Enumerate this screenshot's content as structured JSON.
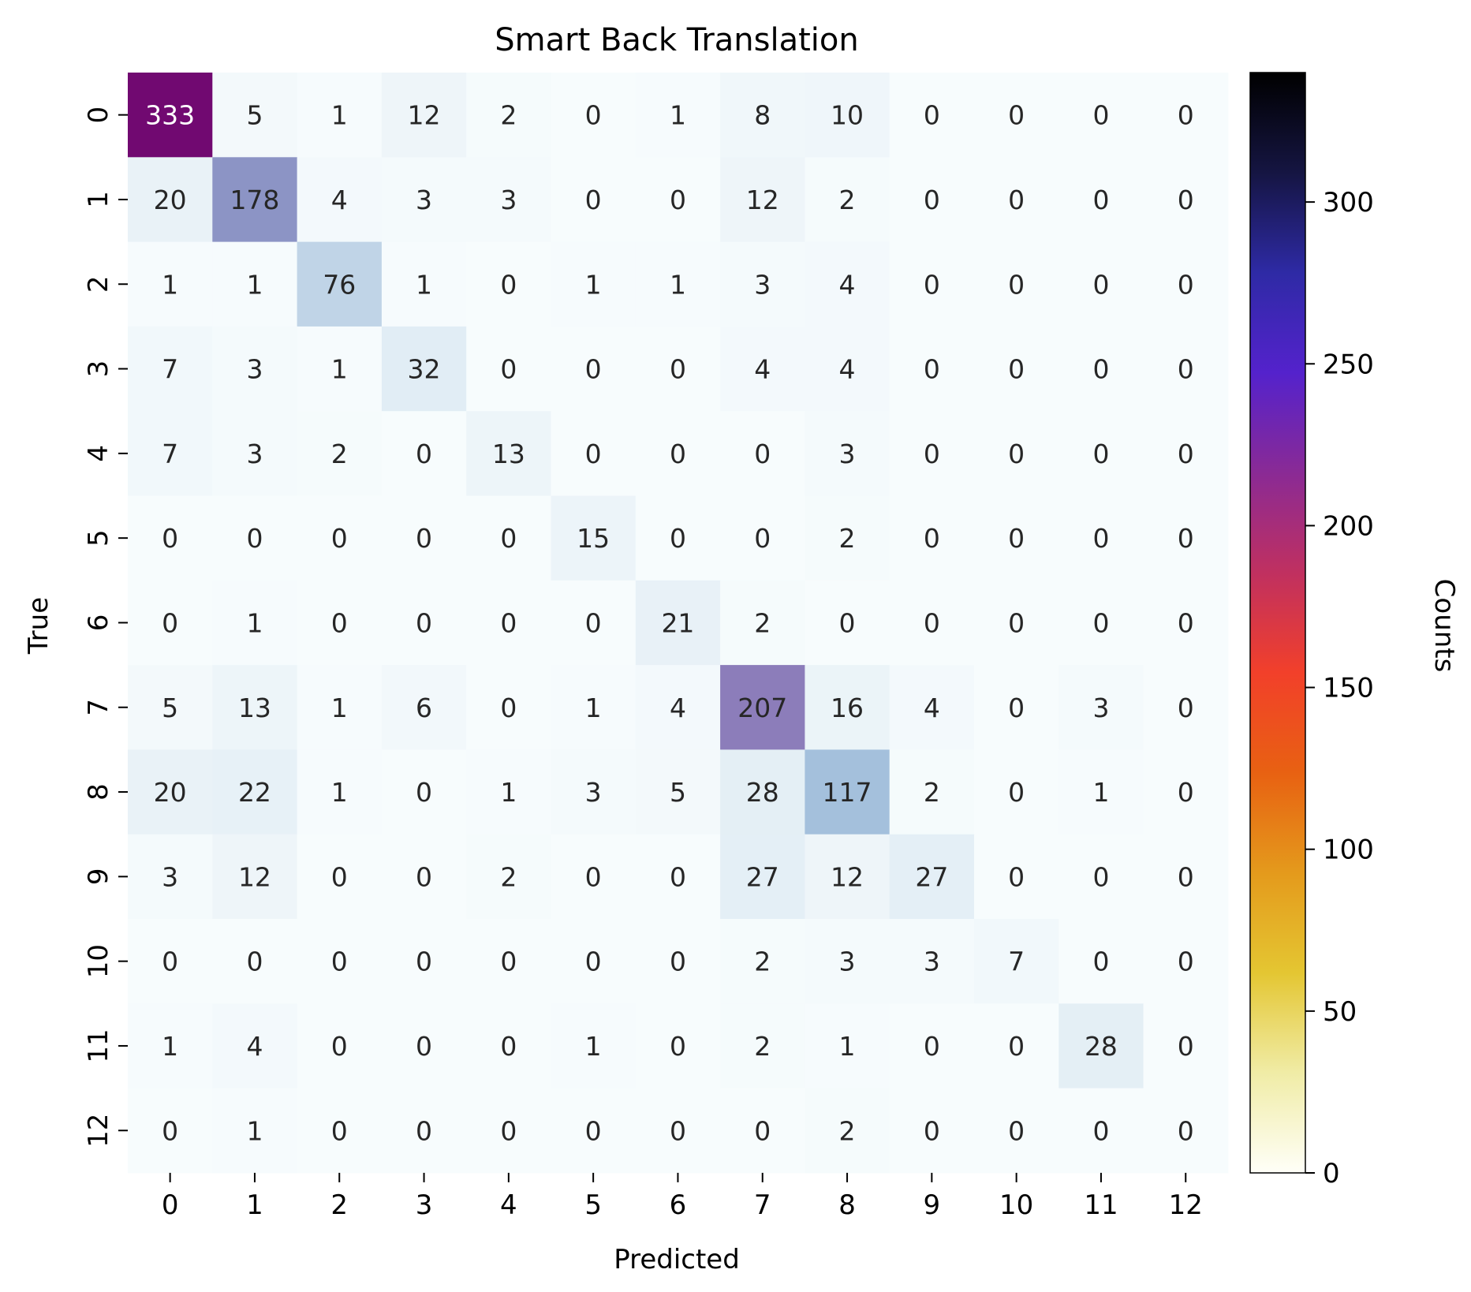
{
  "chart_data": {
    "type": "heatmap",
    "title": "Smart Back Translation",
    "xlabel": "Predicted",
    "ylabel": "True",
    "x_categories": [
      "0",
      "1",
      "2",
      "3",
      "4",
      "5",
      "6",
      "7",
      "8",
      "9",
      "10",
      "11",
      "12"
    ],
    "y_categories": [
      "0",
      "1",
      "2",
      "3",
      "4",
      "5",
      "6",
      "7",
      "8",
      "9",
      "10",
      "11",
      "12"
    ],
    "matrix": [
      [
        333,
        5,
        1,
        12,
        2,
        0,
        1,
        8,
        10,
        0,
        0,
        0,
        0
      ],
      [
        20,
        178,
        4,
        3,
        3,
        0,
        0,
        12,
        2,
        0,
        0,
        0,
        0
      ],
      [
        1,
        1,
        76,
        1,
        0,
        1,
        1,
        3,
        4,
        0,
        0,
        0,
        0
      ],
      [
        7,
        3,
        1,
        32,
        0,
        0,
        0,
        4,
        4,
        0,
        0,
        0,
        0
      ],
      [
        7,
        3,
        2,
        0,
        13,
        0,
        0,
        0,
        3,
        0,
        0,
        0,
        0
      ],
      [
        0,
        0,
        0,
        0,
        0,
        15,
        0,
        0,
        2,
        0,
        0,
        0,
        0
      ],
      [
        0,
        1,
        0,
        0,
        0,
        0,
        21,
        2,
        0,
        0,
        0,
        0,
        0
      ],
      [
        5,
        13,
        1,
        6,
        0,
        1,
        4,
        207,
        16,
        4,
        0,
        3,
        0
      ],
      [
        20,
        22,
        1,
        0,
        1,
        3,
        5,
        28,
        117,
        2,
        0,
        1,
        0
      ],
      [
        3,
        12,
        0,
        0,
        2,
        0,
        0,
        27,
        12,
        27,
        0,
        0,
        0
      ],
      [
        0,
        0,
        0,
        0,
        0,
        0,
        0,
        2,
        3,
        3,
        7,
        0,
        0
      ],
      [
        1,
        4,
        0,
        0,
        0,
        1,
        0,
        2,
        1,
        0,
        0,
        28,
        0
      ],
      [
        0,
        1,
        0,
        0,
        0,
        0,
        0,
        0,
        2,
        0,
        0,
        0,
        0
      ]
    ],
    "cell_colormap": [
      "#f7fcfd",
      "#e0ecf4",
      "#bfd3e6",
      "#9ebcda",
      "#8c96c6",
      "#8c6bb1",
      "#88419d",
      "#6e016b"
    ],
    "colorbar": {
      "label": "Counts",
      "range": [
        0,
        340
      ],
      "ticks": [
        0,
        50,
        100,
        150,
        200,
        250,
        300
      ],
      "tick_labels": [
        "0",
        "50",
        "100",
        "150",
        "200",
        "250",
        "300"
      ],
      "colormap": [
        "#fffff8",
        "#f0eca6",
        "#e4c632",
        "#e49a1c",
        "#e86112",
        "#f2402a",
        "#c03060",
        "#8a2a95",
        "#5422cc",
        "#2e2aa5",
        "#151542",
        "#000000"
      ]
    }
  }
}
